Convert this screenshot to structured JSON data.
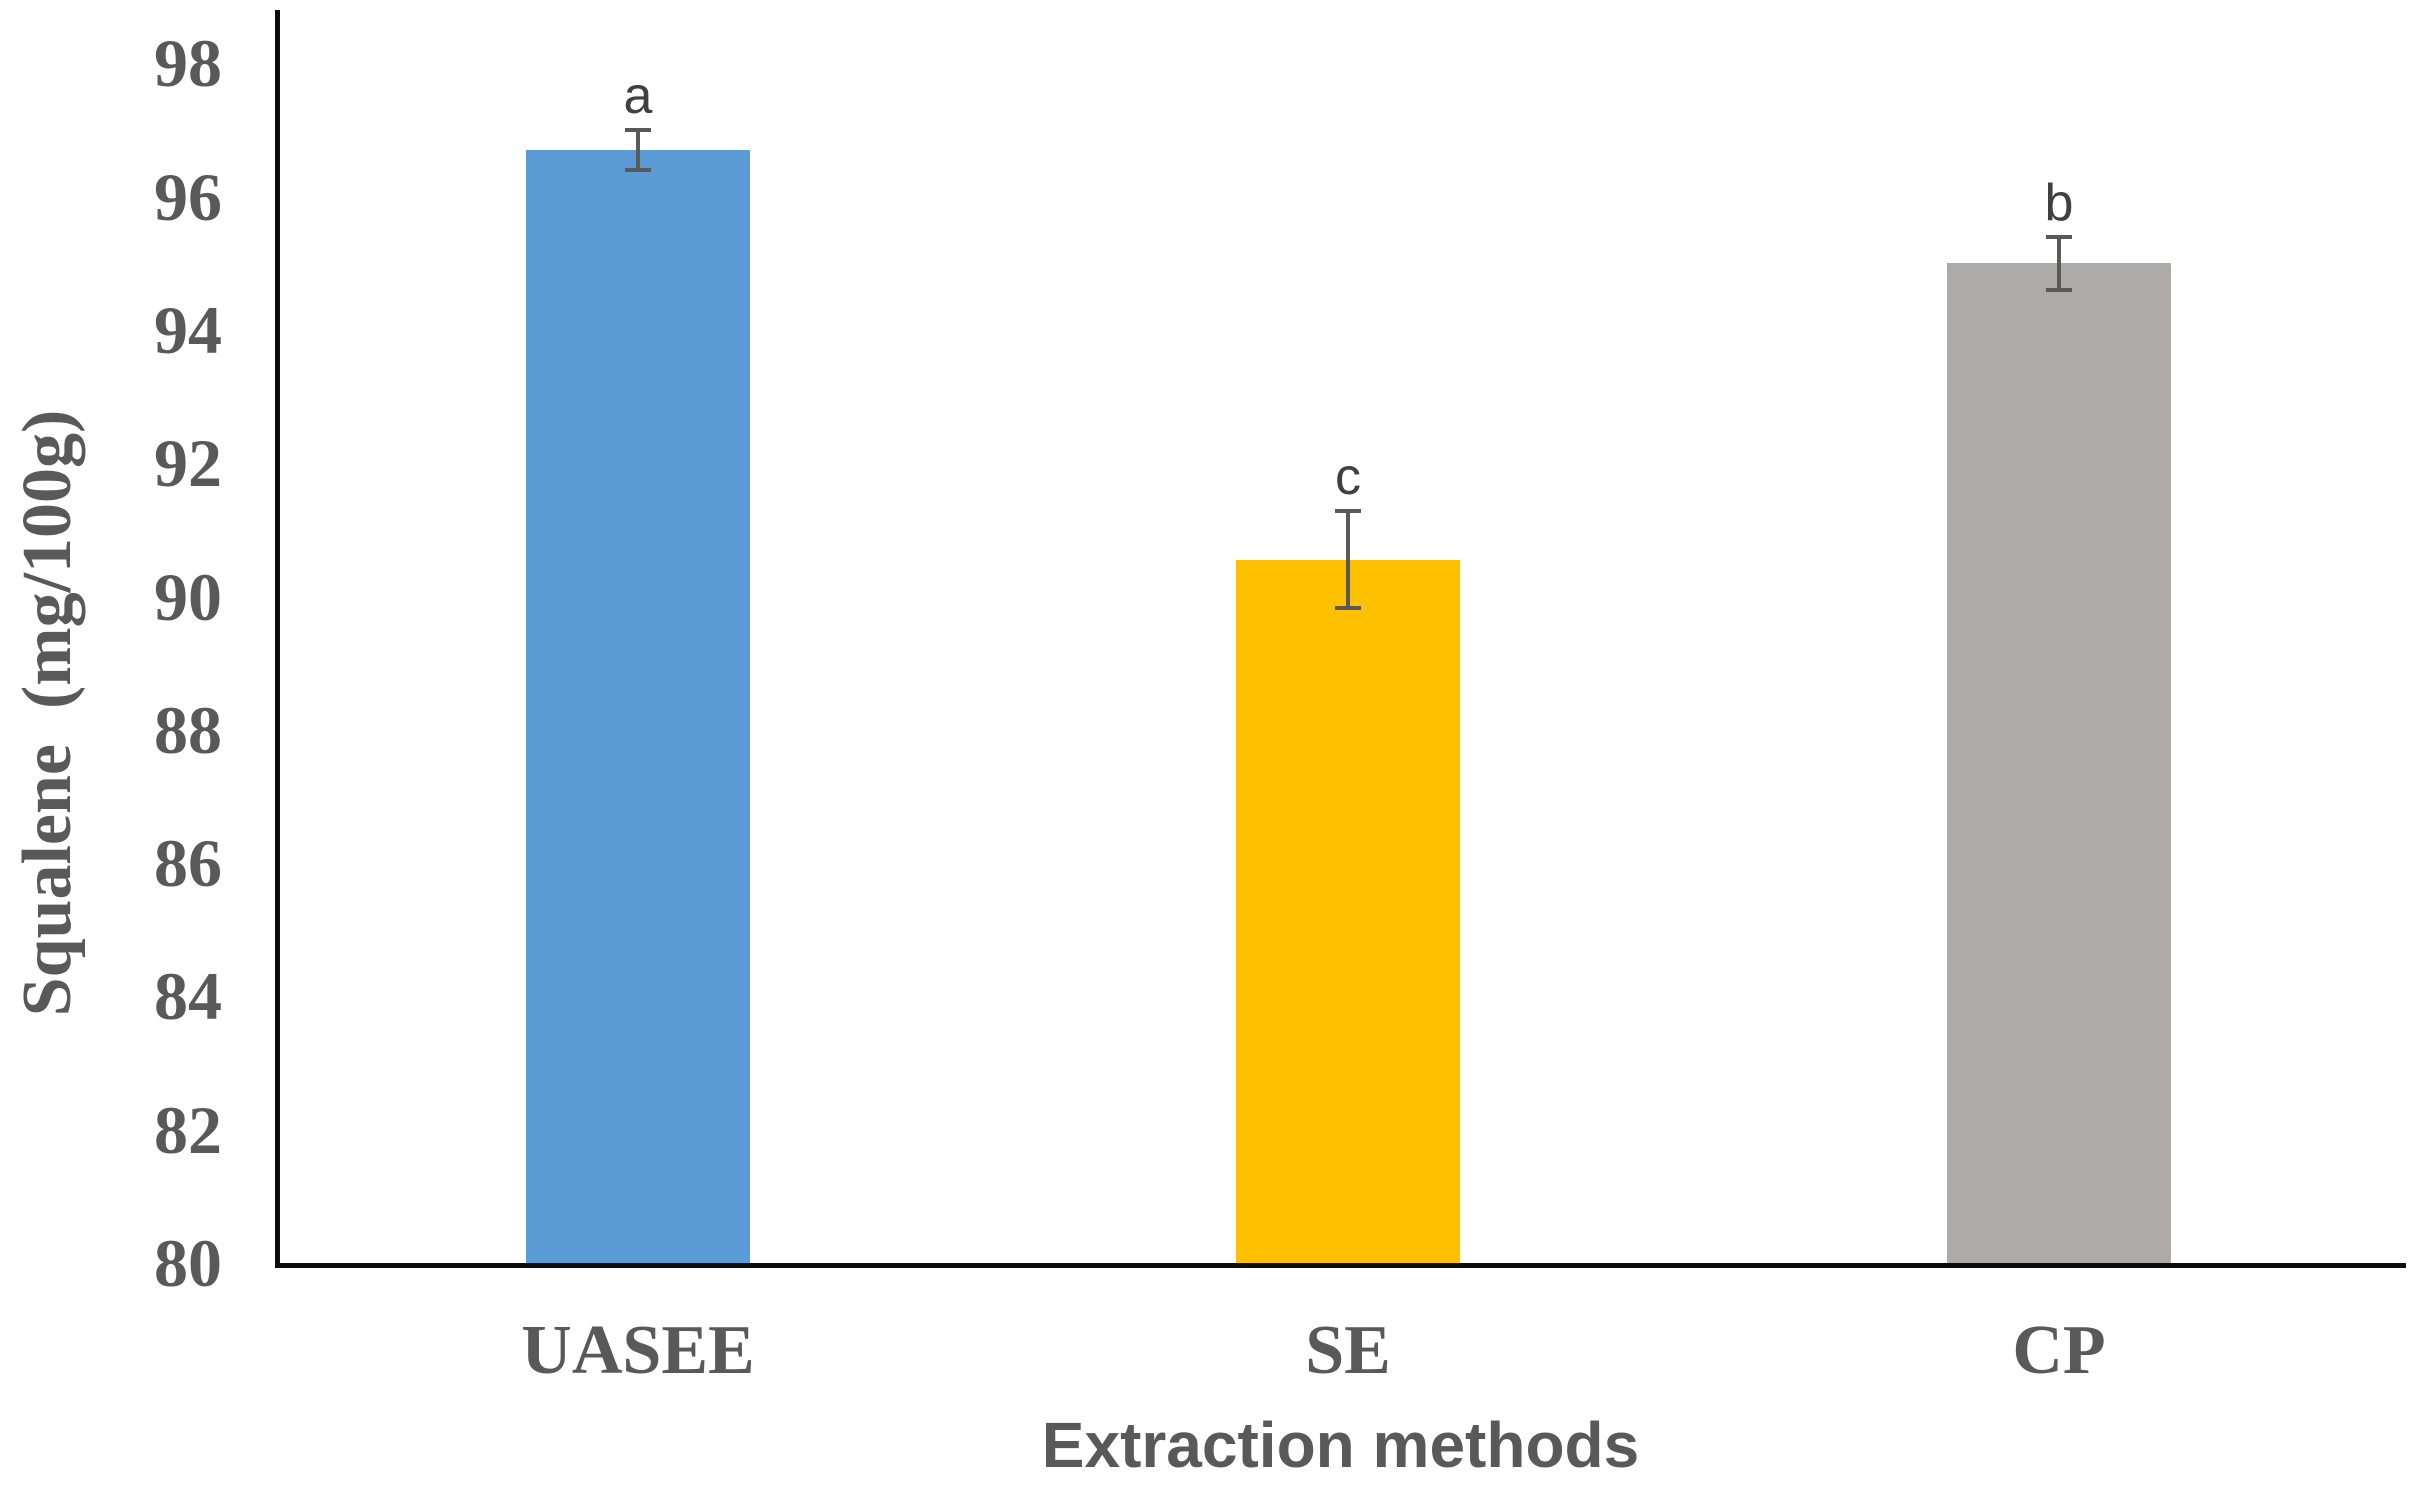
{
  "chart_data": {
    "type": "bar",
    "title": "",
    "xlabel": "Extraction methods",
    "ylabel": "Squalene  (mg/100g)",
    "categories": [
      "UASEE",
      "SE",
      "CP"
    ],
    "values": [
      96.7,
      90.55,
      95.0
    ],
    "errors": [
      0.3,
      0.73,
      0.4
    ],
    "sig_letters": [
      "a",
      "c",
      "b"
    ],
    "bar_colors": [
      "#5B9BD5",
      "#FFC000",
      "#AEAAAA"
    ],
    "ylim": [
      80,
      98
    ],
    "ytick_step": 2,
    "yticks": [
      80,
      82,
      84,
      86,
      88,
      90,
      92,
      94,
      96,
      98
    ],
    "grid": false,
    "legend": false,
    "error_bar_color": "#595959",
    "axis_color": "#0d0d0d",
    "tick_text_color": "#595959"
  }
}
